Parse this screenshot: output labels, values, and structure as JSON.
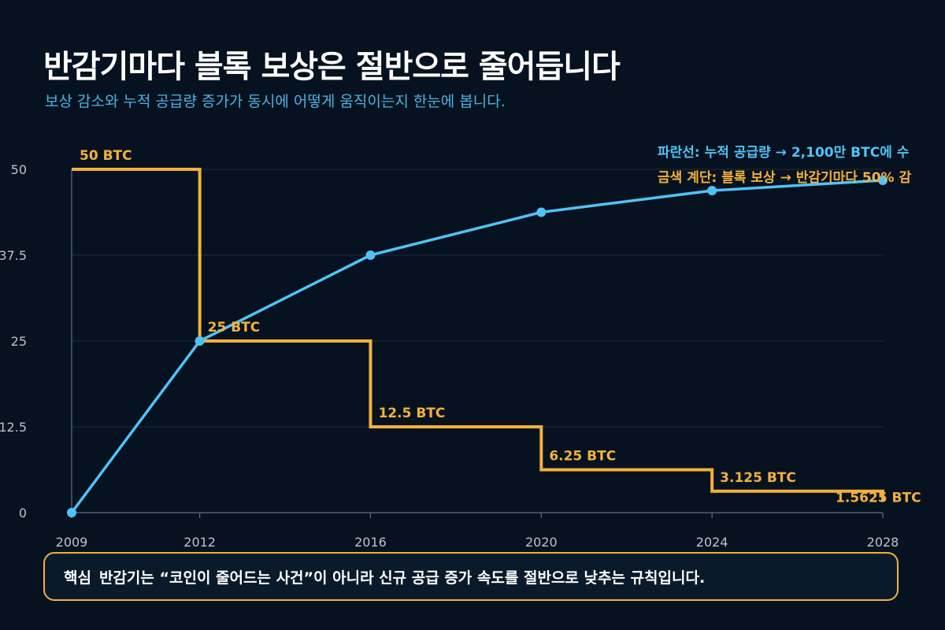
{
  "header": {
    "title": "반감기마다 블록 보상은 절반으로 줄어듭니다",
    "subtitle": "보상 감소와 누적 공급량 증가가 동시에 어떻게 움직이는지 한눈에 봅니다."
  },
  "legend": {
    "blue_text": "파란선: 누적 공급량 → 2,100만 BTC에 수",
    "gold_text": "금색 계단: 블록 보상 → 반감기마다 50% 감"
  },
  "callout": {
    "tag": "핵심",
    "text": "반감기는 “코인이 줄어드는 사건”이 아니라 신규 공급 증가 속도를 절반으로 낮추는 규칙입니다."
  },
  "colors": {
    "background": "#06121f",
    "reward": "#f3b13c",
    "supply": "#4fc3f7",
    "grid": "#1c2c3e",
    "axis_text": "#b8c4d0"
  },
  "chart_data": {
    "type": "line",
    "x_ticks": [
      2009,
      2012,
      2016,
      2020,
      2024,
      2028
    ],
    "y_ticks": [
      "0",
      "12.5",
      "25",
      "37.5",
      "50"
    ],
    "y_tick_values": [
      0,
      12.5,
      25,
      37.5,
      50
    ],
    "ylim": [
      0,
      50
    ],
    "grid": true,
    "legend_position": "top-right",
    "series": [
      {
        "key": "reward",
        "style": "step",
        "x": [
          2009,
          2012,
          2016,
          2020,
          2024,
          2028
        ],
        "values": [
          50,
          25,
          12.5,
          6.25,
          3.125,
          1.5625
        ],
        "labels": [
          "50 BTC",
          "25 BTC",
          "12.5 BTC",
          "6.25 BTC",
          "3.125 BTC",
          "1.5625 BTC"
        ]
      },
      {
        "key": "supply",
        "style": "line",
        "x": [
          2009,
          2012,
          2016,
          2020,
          2024,
          2028
        ],
        "values": [
          0,
          25,
          37.5,
          43.75,
          46.9,
          48.4
        ]
      }
    ]
  }
}
